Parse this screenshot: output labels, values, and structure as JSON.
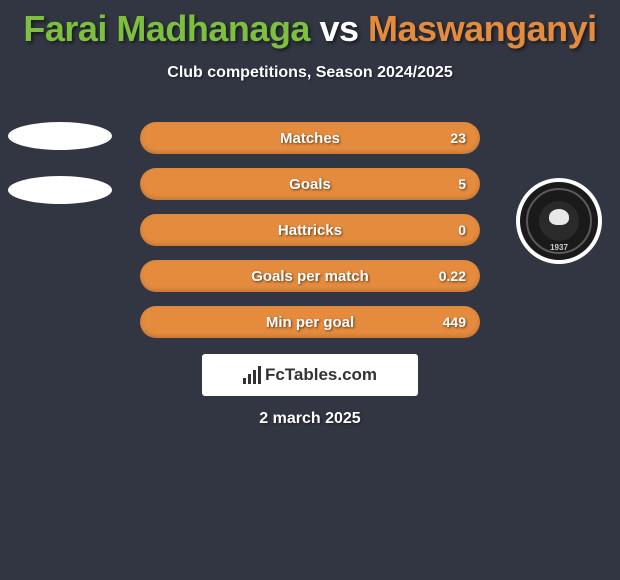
{
  "title": {
    "player1": "Farai Madhanaga",
    "vs": "vs",
    "player2": "Maswanganyi",
    "player1_color": "#7dbf3e",
    "vs_color": "#ffffff",
    "player2_color": "#e48b3e"
  },
  "subtitle": "Club competitions, Season 2024/2025",
  "bars": {
    "fill_color": "#e48b3e",
    "items": [
      {
        "label": "Matches",
        "right": "23"
      },
      {
        "label": "Goals",
        "right": "5"
      },
      {
        "label": "Hattricks",
        "right": "0"
      },
      {
        "label": "Goals per match",
        "right": "0.22"
      },
      {
        "label": "Min per goal",
        "right": "449"
      }
    ]
  },
  "club": {
    "year": "1937"
  },
  "footer": {
    "brand": "FcTables.com"
  },
  "date": "2 march 2025",
  "colors": {
    "background": "#323642",
    "text": "#ffffff"
  }
}
